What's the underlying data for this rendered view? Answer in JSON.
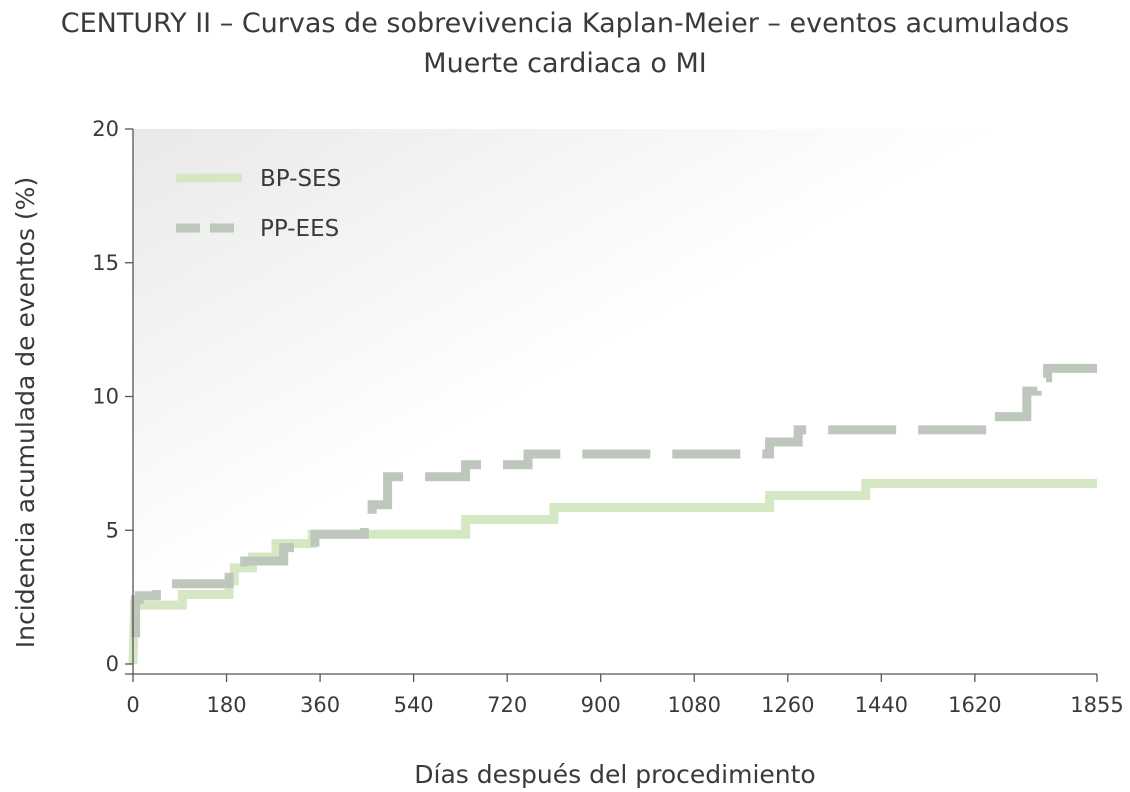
{
  "chart_data": {
    "type": "line",
    "step": true,
    "title": "CENTURY II – Curvas de sobrevivencia Kaplan-Meier – eventos acumulados",
    "subtitle": "Muerte cardiaca o MI",
    "xlabel": "Días después del procedimiento",
    "ylabel": "Incidencia acumulada de eventos (%)",
    "xlim": [
      0,
      1855
    ],
    "ylim": [
      0,
      20
    ],
    "xticks": [
      0,
      180,
      360,
      540,
      720,
      900,
      1080,
      1260,
      1440,
      1620,
      1855
    ],
    "yticks": [
      0,
      5,
      10,
      15,
      20
    ],
    "legend_position": "top-left",
    "grid": false,
    "series": [
      {
        "name": "BP-SES",
        "color": "#d6e8c3",
        "style": "solid",
        "points": [
          [
            0,
            0
          ],
          [
            3,
            2.2
          ],
          [
            95,
            2.2
          ],
          [
            95,
            2.6
          ],
          [
            185,
            2.6
          ],
          [
            185,
            3.1
          ],
          [
            195,
            3.1
          ],
          [
            195,
            3.6
          ],
          [
            230,
            3.6
          ],
          [
            230,
            4.0
          ],
          [
            275,
            4.0
          ],
          [
            275,
            4.5
          ],
          [
            345,
            4.5
          ],
          [
            345,
            4.85
          ],
          [
            640,
            4.85
          ],
          [
            640,
            5.4
          ],
          [
            810,
            5.4
          ],
          [
            810,
            5.85
          ],
          [
            1225,
            5.85
          ],
          [
            1225,
            6.3
          ],
          [
            1410,
            6.3
          ],
          [
            1410,
            6.75
          ],
          [
            1855,
            6.75
          ]
        ]
      },
      {
        "name": "PP-EES",
        "color": "#bdc7bc",
        "style": "dashed",
        "points": [
          [
            5,
            1.0
          ],
          [
            5,
            2.4
          ],
          [
            12,
            2.4
          ],
          [
            12,
            2.55
          ],
          [
            45,
            2.55
          ],
          [
            45,
            3.0
          ],
          [
            185,
            3.0
          ],
          [
            185,
            3.45
          ],
          [
            215,
            3.45
          ],
          [
            215,
            3.85
          ],
          [
            290,
            3.85
          ],
          [
            290,
            4.35
          ],
          [
            350,
            4.35
          ],
          [
            350,
            4.85
          ],
          [
            445,
            4.85
          ],
          [
            445,
            5.55
          ],
          [
            460,
            5.55
          ],
          [
            460,
            5.95
          ],
          [
            490,
            5.95
          ],
          [
            490,
            7.0
          ],
          [
            640,
            7.0
          ],
          [
            640,
            7.45
          ],
          [
            760,
            7.45
          ],
          [
            760,
            7.85
          ],
          [
            1225,
            7.85
          ],
          [
            1225,
            8.3
          ],
          [
            1280,
            8.3
          ],
          [
            1280,
            8.75
          ],
          [
            1650,
            8.75
          ],
          [
            1650,
            9.25
          ],
          [
            1720,
            9.25
          ],
          [
            1720,
            10.2
          ],
          [
            1740,
            10.2
          ],
          [
            1740,
            10.7
          ],
          [
            1760,
            10.7
          ],
          [
            1760,
            11.05
          ],
          [
            1855,
            11.05
          ]
        ]
      }
    ]
  }
}
